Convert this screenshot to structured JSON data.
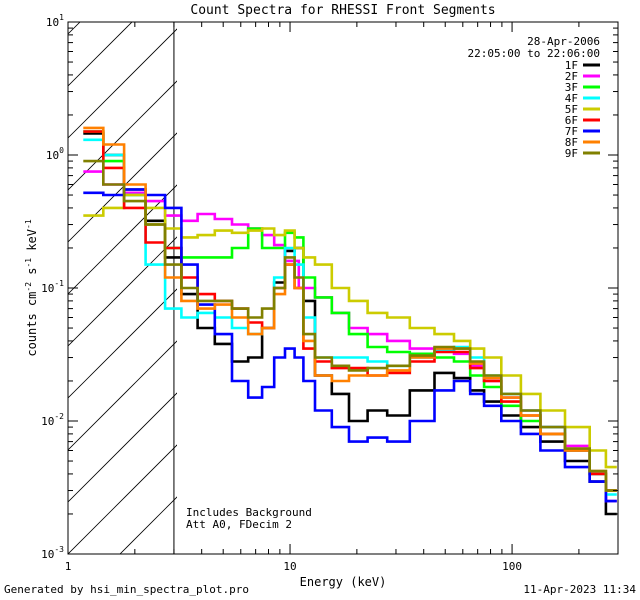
{
  "chart_data": {
    "type": "line",
    "title": "Count Spectra for RHESSI Front Segments",
    "xlabel": "Energy (keV)",
    "ylabel": "counts cm⁻² s⁻¹ keV⁻¹",
    "xscale": "log",
    "yscale": "log",
    "xlim": [
      1,
      300
    ],
    "ylim": [
      0.001,
      10
    ],
    "x_ticks": [
      {
        "value": 1,
        "label": "1"
      },
      {
        "value": 10,
        "label": "10"
      },
      {
        "value": 100,
        "label": "100"
      }
    ],
    "y_ticks": [
      {
        "value": 0.001,
        "mantissa": "10",
        "exp": "-3"
      },
      {
        "value": 0.01,
        "mantissa": "10",
        "exp": "-2"
      },
      {
        "value": 0.1,
        "mantissa": "10",
        "exp": "-1"
      },
      {
        "value": 1,
        "mantissa": "10",
        "exp": "0"
      },
      {
        "value": 10,
        "mantissa": "10",
        "exp": "1"
      }
    ],
    "date": "28-Apr-2006",
    "time_range": "22:05:00 to 22:06:00",
    "notes": [
      "Includes Background",
      "Att A0, FDecim 2"
    ],
    "hatched_region": {
      "x_from": 1,
      "x_to": 3
    },
    "series": [
      {
        "name": "1F",
        "color": "#000000",
        "points": [
          [
            1.3,
            1.45
          ],
          [
            1.6,
            1.0
          ],
          [
            2.0,
            0.55
          ],
          [
            2.5,
            0.32
          ],
          [
            3.0,
            0.17
          ],
          [
            3.5,
            0.09
          ],
          [
            4.2,
            0.05
          ],
          [
            5,
            0.038
          ],
          [
            6,
            0.028
          ],
          [
            7,
            0.03
          ],
          [
            8,
            0.05
          ],
          [
            9,
            0.11
          ],
          [
            10,
            0.19
          ],
          [
            11,
            0.2
          ],
          [
            12,
            0.08
          ],
          [
            14,
            0.022
          ],
          [
            17,
            0.016
          ],
          [
            20,
            0.01
          ],
          [
            25,
            0.012
          ],
          [
            30,
            0.011
          ],
          [
            40,
            0.017
          ],
          [
            50,
            0.023
          ],
          [
            60,
            0.021
          ],
          [
            70,
            0.017
          ],
          [
            80,
            0.014
          ],
          [
            100,
            0.011
          ],
          [
            120,
            0.009
          ],
          [
            150,
            0.007
          ],
          [
            200,
            0.005
          ],
          [
            250,
            0.0035
          ],
          [
            280,
            0.002
          ]
        ]
      },
      {
        "name": "2F",
        "color": "#ff00ff",
        "points": [
          [
            1.3,
            0.75
          ],
          [
            1.6,
            0.6
          ],
          [
            2.0,
            0.52
          ],
          [
            2.5,
            0.45
          ],
          [
            3.0,
            0.35
          ],
          [
            3.5,
            0.32
          ],
          [
            4.2,
            0.36
          ],
          [
            5,
            0.33
          ],
          [
            6,
            0.3
          ],
          [
            7,
            0.28
          ],
          [
            8,
            0.25
          ],
          [
            9,
            0.21
          ],
          [
            10,
            0.16
          ],
          [
            12,
            0.1
          ],
          [
            14,
            0.085
          ],
          [
            17,
            0.065
          ],
          [
            20,
            0.05
          ],
          [
            25,
            0.045
          ],
          [
            30,
            0.04
          ],
          [
            40,
            0.035
          ],
          [
            50,
            0.034
          ],
          [
            60,
            0.032
          ],
          [
            70,
            0.026
          ],
          [
            80,
            0.02
          ],
          [
            100,
            0.015
          ],
          [
            120,
            0.012
          ],
          [
            150,
            0.009
          ],
          [
            200,
            0.0065
          ],
          [
            250,
            0.004
          ],
          [
            280,
            0.0025
          ]
        ]
      },
      {
        "name": "3F",
        "color": "#00ff00",
        "points": [
          [
            1.3,
            1.5
          ],
          [
            1.6,
            0.9
          ],
          [
            2.0,
            0.5
          ],
          [
            2.5,
            0.3
          ],
          [
            3.0,
            0.2
          ],
          [
            3.5,
            0.17
          ],
          [
            4.2,
            0.17
          ],
          [
            5,
            0.17
          ],
          [
            6,
            0.2
          ],
          [
            7,
            0.28
          ],
          [
            8,
            0.2
          ],
          [
            9,
            0.2
          ],
          [
            10,
            0.26
          ],
          [
            11,
            0.24
          ],
          [
            12,
            0.12
          ],
          [
            14,
            0.085
          ],
          [
            17,
            0.065
          ],
          [
            20,
            0.045
          ],
          [
            25,
            0.036
          ],
          [
            30,
            0.033
          ],
          [
            40,
            0.032
          ],
          [
            50,
            0.03
          ],
          [
            60,
            0.028
          ],
          [
            70,
            0.022
          ],
          [
            80,
            0.018
          ],
          [
            100,
            0.013
          ],
          [
            120,
            0.01
          ],
          [
            150,
            0.008
          ],
          [
            200,
            0.006
          ],
          [
            250,
            0.004
          ],
          [
            280,
            0.003
          ]
        ]
      },
      {
        "name": "4F",
        "color": "#00ffff",
        "points": [
          [
            1.3,
            1.3
          ],
          [
            1.6,
            1.0
          ],
          [
            2.0,
            0.5
          ],
          [
            2.5,
            0.15
          ],
          [
            3.0,
            0.07
          ],
          [
            3.5,
            0.06
          ],
          [
            4.2,
            0.065
          ],
          [
            5,
            0.06
          ],
          [
            6,
            0.05
          ],
          [
            7,
            0.045
          ],
          [
            8,
            0.05
          ],
          [
            9,
            0.12
          ],
          [
            10,
            0.2
          ],
          [
            11,
            0.15
          ],
          [
            12,
            0.06
          ],
          [
            14,
            0.03
          ],
          [
            17,
            0.03
          ],
          [
            20,
            0.03
          ],
          [
            25,
            0.028
          ],
          [
            30,
            0.026
          ],
          [
            40,
            0.03
          ],
          [
            50,
            0.034
          ],
          [
            60,
            0.036
          ],
          [
            70,
            0.03
          ],
          [
            80,
            0.022
          ],
          [
            100,
            0.016
          ],
          [
            120,
            0.012
          ],
          [
            150,
            0.009
          ],
          [
            200,
            0.006
          ],
          [
            250,
            0.004
          ],
          [
            280,
            0.0028
          ]
        ]
      },
      {
        "name": "5F",
        "color": "#cccc00",
        "points": [
          [
            1.3,
            0.35
          ],
          [
            1.6,
            0.4
          ],
          [
            2.0,
            0.5
          ],
          [
            2.5,
            0.4
          ],
          [
            3.0,
            0.28
          ],
          [
            3.5,
            0.24
          ],
          [
            4.2,
            0.25
          ],
          [
            5,
            0.27
          ],
          [
            6,
            0.26
          ],
          [
            7,
            0.27
          ],
          [
            8,
            0.28
          ],
          [
            9,
            0.25
          ],
          [
            10,
            0.27
          ],
          [
            11,
            0.2
          ],
          [
            12,
            0.17
          ],
          [
            14,
            0.15
          ],
          [
            17,
            0.1
          ],
          [
            20,
            0.08
          ],
          [
            25,
            0.065
          ],
          [
            30,
            0.06
          ],
          [
            40,
            0.05
          ],
          [
            50,
            0.045
          ],
          [
            60,
            0.04
          ],
          [
            70,
            0.035
          ],
          [
            80,
            0.03
          ],
          [
            100,
            0.022
          ],
          [
            120,
            0.016
          ],
          [
            150,
            0.012
          ],
          [
            200,
            0.009
          ],
          [
            250,
            0.006
          ],
          [
            280,
            0.0045
          ]
        ]
      },
      {
        "name": "6F",
        "color": "#ff0000",
        "points": [
          [
            1.3,
            1.5
          ],
          [
            1.6,
            0.8
          ],
          [
            2.0,
            0.4
          ],
          [
            2.5,
            0.22
          ],
          [
            3.0,
            0.2
          ],
          [
            3.5,
            0.12
          ],
          [
            4.2,
            0.09
          ],
          [
            5,
            0.08
          ],
          [
            6,
            0.07
          ],
          [
            7,
            0.055
          ],
          [
            8,
            0.05
          ],
          [
            9,
            0.1
          ],
          [
            10,
            0.15
          ],
          [
            11,
            0.1
          ],
          [
            12,
            0.035
          ],
          [
            14,
            0.028
          ],
          [
            17,
            0.025
          ],
          [
            20,
            0.025
          ],
          [
            25,
            0.022
          ],
          [
            30,
            0.023
          ],
          [
            40,
            0.028
          ],
          [
            50,
            0.033
          ],
          [
            60,
            0.033
          ],
          [
            70,
            0.025
          ],
          [
            80,
            0.02
          ],
          [
            100,
            0.014
          ],
          [
            120,
            0.011
          ],
          [
            150,
            0.008
          ],
          [
            200,
            0.006
          ],
          [
            250,
            0.004
          ],
          [
            280,
            0.003
          ]
        ]
      },
      {
        "name": "7F",
        "color": "#0000ff",
        "points": [
          [
            1.3,
            0.52
          ],
          [
            1.6,
            0.5
          ],
          [
            2.0,
            0.55
          ],
          [
            2.5,
            0.5
          ],
          [
            3.0,
            0.4
          ],
          [
            3.5,
            0.15
          ],
          [
            4.2,
            0.075
          ],
          [
            5,
            0.045
          ],
          [
            6,
            0.02
          ],
          [
            7,
            0.015
          ],
          [
            8,
            0.018
          ],
          [
            9,
            0.03
          ],
          [
            10,
            0.035
          ],
          [
            11,
            0.03
          ],
          [
            12,
            0.02
          ],
          [
            14,
            0.012
          ],
          [
            17,
            0.009
          ],
          [
            20,
            0.007
          ],
          [
            25,
            0.0075
          ],
          [
            30,
            0.007
          ],
          [
            40,
            0.01
          ],
          [
            50,
            0.017
          ],
          [
            60,
            0.02
          ],
          [
            70,
            0.016
          ],
          [
            80,
            0.013
          ],
          [
            100,
            0.01
          ],
          [
            120,
            0.008
          ],
          [
            150,
            0.006
          ],
          [
            200,
            0.0045
          ],
          [
            250,
            0.0035
          ],
          [
            280,
            0.0025
          ]
        ]
      },
      {
        "name": "8F",
        "color": "#ff8000",
        "points": [
          [
            1.3,
            1.6
          ],
          [
            1.6,
            1.2
          ],
          [
            2.0,
            0.6
          ],
          [
            2.5,
            0.3
          ],
          [
            3.0,
            0.12
          ],
          [
            3.5,
            0.08
          ],
          [
            4.2,
            0.07
          ],
          [
            5,
            0.075
          ],
          [
            6,
            0.06
          ],
          [
            7,
            0.045
          ],
          [
            8,
            0.05
          ],
          [
            9,
            0.09
          ],
          [
            10,
            0.15
          ],
          [
            11,
            0.1
          ],
          [
            12,
            0.04
          ],
          [
            14,
            0.022
          ],
          [
            17,
            0.02
          ],
          [
            20,
            0.022
          ],
          [
            25,
            0.022
          ],
          [
            30,
            0.024
          ],
          [
            40,
            0.03
          ],
          [
            50,
            0.035
          ],
          [
            60,
            0.035
          ],
          [
            70,
            0.027
          ],
          [
            80,
            0.021
          ],
          [
            100,
            0.015
          ],
          [
            120,
            0.011
          ],
          [
            150,
            0.008
          ],
          [
            200,
            0.006
          ],
          [
            250,
            0.0042
          ],
          [
            280,
            0.003
          ]
        ]
      },
      {
        "name": "9F",
        "color": "#808000",
        "points": [
          [
            1.3,
            0.9
          ],
          [
            1.6,
            0.6
          ],
          [
            2.0,
            0.45
          ],
          [
            2.5,
            0.3
          ],
          [
            3.0,
            0.15
          ],
          [
            3.5,
            0.1
          ],
          [
            4.2,
            0.08
          ],
          [
            5,
            0.08
          ],
          [
            6,
            0.07
          ],
          [
            7,
            0.06
          ],
          [
            8,
            0.07
          ],
          [
            9,
            0.1
          ],
          [
            10,
            0.17
          ],
          [
            11,
            0.12
          ],
          [
            12,
            0.045
          ],
          [
            14,
            0.03
          ],
          [
            17,
            0.026
          ],
          [
            20,
            0.024
          ],
          [
            25,
            0.025
          ],
          [
            30,
            0.026
          ],
          [
            40,
            0.031
          ],
          [
            50,
            0.036
          ],
          [
            60,
            0.035
          ],
          [
            70,
            0.028
          ],
          [
            80,
            0.022
          ],
          [
            100,
            0.016
          ],
          [
            120,
            0.012
          ],
          [
            150,
            0.009
          ],
          [
            200,
            0.0062
          ],
          [
            250,
            0.0042
          ],
          [
            280,
            0.003
          ]
        ]
      }
    ]
  },
  "footer": {
    "left": "Generated by hsi_min_spectra_plot.pro",
    "right": "11-Apr-2023 11:34"
  }
}
